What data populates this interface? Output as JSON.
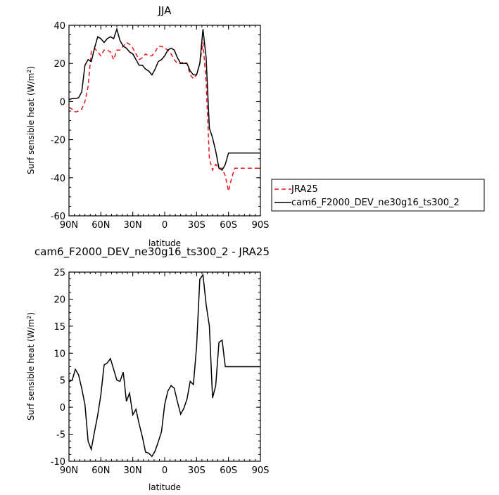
{
  "chart_data": [
    {
      "type": "line",
      "title": "JJA",
      "xlabel": "latitude",
      "ylabel_main": "Surf sensible heat (W/m",
      "ylabel_sup": "2",
      "ylabel_end": ")",
      "xlim": [
        90,
        -90
      ],
      "ylim": [
        -60,
        40
      ],
      "xticks": [
        {
          "v": 90,
          "label": "90N"
        },
        {
          "v": 60,
          "label": "60N"
        },
        {
          "v": 30,
          "label": "30N"
        },
        {
          "v": 0,
          "label": "0"
        },
        {
          "v": -30,
          "label": "30S"
        },
        {
          "v": -60,
          "label": "60S"
        },
        {
          "v": -90,
          "label": "90S"
        }
      ],
      "yticks": [
        {
          "v": 40,
          "label": "40"
        },
        {
          "v": 20,
          "label": "20"
        },
        {
          "v": 0,
          "label": "0"
        },
        {
          "v": -20,
          "label": "-20"
        },
        {
          "v": -40,
          "label": "-40"
        },
        {
          "v": -60,
          "label": "-60"
        }
      ],
      "legend_position": "right",
      "series": [
        {
          "name": "JRA25",
          "color": "#e8141c",
          "dash": "6,4",
          "x": [
            90,
            87,
            84,
            81,
            78,
            75,
            72,
            69,
            66,
            63,
            60,
            57,
            54,
            51,
            48,
            45,
            42,
            39,
            36,
            33,
            30,
            27,
            24,
            21,
            18,
            15,
            12,
            9,
            6,
            3,
            0,
            -3,
            -6,
            -9,
            -12,
            -15,
            -18,
            -21,
            -24,
            -27,
            -30,
            -33,
            -36,
            -39,
            -42,
            -45,
            -48,
            -51,
            -54,
            -57,
            -60,
            -63,
            -66,
            -69,
            -72,
            -75,
            -78,
            -81,
            -84,
            -87,
            -90
          ],
          "y": [
            -3,
            -4,
            -5.5,
            -5,
            -4,
            0,
            8,
            26,
            28,
            26,
            24,
            27,
            27,
            26,
            22,
            27,
            27,
            29,
            31,
            30,
            28,
            25,
            22,
            23,
            25,
            24,
            24,
            26,
            29,
            29,
            28,
            27,
            25,
            22,
            20,
            20,
            21,
            20,
            14,
            12,
            14,
            20,
            31,
            10,
            -30,
            -36,
            -33,
            -35,
            -35,
            -39,
            -47,
            -40,
            -35,
            -35,
            -35,
            -35,
            -35,
            -35,
            -35,
            -35,
            -35
          ]
        },
        {
          "name": "cam6_F2000_DEV_ne30g16_ts300_2",
          "color": "#000000",
          "dash": "",
          "x": [
            90,
            87,
            84,
            81,
            78,
            75,
            72,
            69,
            66,
            63,
            60,
            57,
            54,
            51,
            48,
            45,
            42,
            39,
            36,
            33,
            30,
            27,
            24,
            21,
            18,
            15,
            12,
            9,
            6,
            3,
            0,
            -3,
            -6,
            -9,
            -12,
            -15,
            -18,
            -21,
            -24,
            -27,
            -30,
            -33,
            -36,
            -39,
            -42,
            -45,
            -48,
            -51,
            -54,
            -57,
            -60,
            -63,
            -66,
            -69,
            -72,
            -75,
            -78,
            -81,
            -84,
            -87,
            -90
          ],
          "y": [
            1,
            1.5,
            1.5,
            2,
            5,
            19,
            22,
            21,
            28,
            34,
            33,
            31,
            33,
            34,
            33,
            38,
            32,
            29,
            28,
            26,
            25,
            22,
            19,
            19,
            17,
            16,
            14,
            17,
            21,
            22,
            24,
            27,
            28,
            27,
            23,
            20,
            20,
            20,
            16,
            14,
            14,
            20,
            38,
            23,
            -14,
            -19,
            -26,
            -35,
            -36,
            -33,
            -27,
            -27,
            -27,
            -27,
            -27,
            -27,
            -27,
            -27,
            -27,
            -27,
            -27
          ]
        }
      ]
    },
    {
      "type": "line",
      "title": "cam6_F2000_DEV_ne30g16_ts300_2 - JRA25",
      "xlabel": "latitude",
      "ylabel_main": "Surf sensible heat (W/m",
      "ylabel_sup": "2",
      "ylabel_end": ")",
      "xlim": [
        90,
        -90
      ],
      "ylim": [
        -10,
        25
      ],
      "xticks": [
        {
          "v": 90,
          "label": "90N"
        },
        {
          "v": 60,
          "label": "60N"
        },
        {
          "v": 30,
          "label": "30N"
        },
        {
          "v": 0,
          "label": "0"
        },
        {
          "v": -30,
          "label": "30S"
        },
        {
          "v": -60,
          "label": "60S"
        },
        {
          "v": -90,
          "label": "90S"
        }
      ],
      "yticks": [
        {
          "v": 25,
          "label": "25"
        },
        {
          "v": 20,
          "label": "20"
        },
        {
          "v": 15,
          "label": "15"
        },
        {
          "v": 10,
          "label": "10"
        },
        {
          "v": 5,
          "label": "5"
        },
        {
          "v": 0,
          "label": "0"
        },
        {
          "v": -5,
          "label": "-5"
        },
        {
          "v": -10,
          "label": "-10"
        }
      ],
      "series": [
        {
          "name": "",
          "color": "#000000",
          "dash": "",
          "x": [
            90,
            87,
            84,
            81,
            78,
            75,
            72,
            69,
            66,
            63,
            60,
            57,
            54,
            51,
            48,
            45,
            42,
            39,
            36,
            33,
            30,
            27,
            24,
            21,
            18,
            15,
            12,
            9,
            6,
            3,
            0,
            -3,
            -6,
            -9,
            -12,
            -15,
            -18,
            -21,
            -24,
            -27,
            -30,
            -33,
            -36,
            -39,
            -42,
            -45,
            -48,
            -51,
            -54,
            -57,
            -60,
            -63,
            -66,
            -69,
            -72,
            -75,
            -78,
            -81,
            -84,
            -87,
            -90
          ],
          "y": [
            4.7,
            5.0,
            7.0,
            6.0,
            3.5,
            0.5,
            -6.3,
            -7.8,
            -4.5,
            -1.5,
            2.3,
            7.8,
            8.2,
            9.0,
            7.0,
            5.0,
            4.8,
            6.5,
            1.1,
            2.6,
            -1.4,
            -0.4,
            -3.1,
            -5.5,
            -8.3,
            -8.5,
            -9.1,
            -8.1,
            -6.4,
            -4.5,
            0.5,
            3.0,
            4.0,
            3.5,
            1.0,
            -1.3,
            -0.2,
            1.5,
            4.8,
            4.2,
            11.2,
            23.7,
            24.5,
            19.0,
            15.0,
            1.7,
            4.0,
            12.0,
            12.4,
            7.5,
            7.5,
            7.5,
            7.5,
            7.5,
            7.5,
            7.5,
            7.5,
            7.5,
            7.5,
            7.5,
            7.5
          ]
        }
      ]
    }
  ]
}
